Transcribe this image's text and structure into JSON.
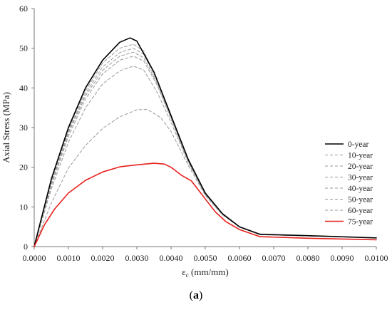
{
  "chart_data": {
    "type": "line",
    "ylabel": "Axial Stress (MPa)",
    "xlabel_main": "ε",
    "xlabel_sub": "c",
    "xlabel_unit": " (mm/mm)",
    "xlim": [
      0,
      0.01
    ],
    "ylim": [
      0,
      60
    ],
    "x_ticks": [
      "0.0000",
      "0.0010",
      "0.0020",
      "0.0030",
      "0.0040",
      "0.0050",
      "0.0060",
      "0.0070",
      "0.0080",
      "0.0090",
      "0.0100"
    ],
    "y_ticks": [
      "0",
      "10",
      "20",
      "30",
      "40",
      "50",
      "60"
    ],
    "grid": false,
    "legend_position": "right",
    "series": [
      {
        "name": "0-year",
        "color": "#000000",
        "dash": "solid",
        "points": [
          [
            0,
            0
          ],
          [
            0.0005,
            17
          ],
          [
            0.001,
            30
          ],
          [
            0.0015,
            40
          ],
          [
            0.002,
            47
          ],
          [
            0.0025,
            51.5
          ],
          [
            0.0028,
            52.6
          ],
          [
            0.003,
            51.8
          ],
          [
            0.0035,
            44
          ],
          [
            0.004,
            33
          ],
          [
            0.0045,
            22
          ],
          [
            0.005,
            13.5
          ],
          [
            0.0055,
            8.3
          ],
          [
            0.006,
            5.0
          ],
          [
            0.0066,
            3.1
          ],
          [
            0.008,
            2.75
          ],
          [
            0.01,
            2.2
          ]
        ]
      },
      {
        "name": "10-year",
        "color": "#9a9a9a",
        "dash": "dashed",
        "points": [
          [
            0,
            0
          ],
          [
            0.0005,
            16.5
          ],
          [
            0.001,
            29.5
          ],
          [
            0.0015,
            39.3
          ],
          [
            0.002,
            46.3
          ],
          [
            0.0025,
            50
          ],
          [
            0.0029,
            51
          ],
          [
            0.0032,
            49.3
          ],
          [
            0.0036,
            42
          ],
          [
            0.004,
            33
          ],
          [
            0.0045,
            22
          ],
          [
            0.005,
            13.5
          ],
          [
            0.0055,
            8.3
          ],
          [
            0.006,
            5.0
          ],
          [
            0.0066,
            3.0
          ],
          [
            0.008,
            2.7
          ],
          [
            0.01,
            2.2
          ]
        ]
      },
      {
        "name": "20-year",
        "color": "#9a9a9a",
        "dash": "dashed",
        "points": [
          [
            0,
            0
          ],
          [
            0.0005,
            16.2
          ],
          [
            0.001,
            29
          ],
          [
            0.0015,
            38.6
          ],
          [
            0.002,
            45.3
          ],
          [
            0.0025,
            48.9
          ],
          [
            0.0029,
            50
          ],
          [
            0.0032,
            48.5
          ],
          [
            0.0036,
            41.5
          ],
          [
            0.004,
            32.8
          ],
          [
            0.0045,
            21.8
          ],
          [
            0.005,
            13.4
          ],
          [
            0.0055,
            8.2
          ],
          [
            0.006,
            5.0
          ],
          [
            0.0066,
            3.0
          ],
          [
            0.008,
            2.7
          ],
          [
            0.01,
            2.2
          ]
        ]
      },
      {
        "name": "30-year",
        "color": "#9a9a9a",
        "dash": "dashed",
        "points": [
          [
            0,
            0
          ],
          [
            0.0005,
            15.8
          ],
          [
            0.001,
            28.5
          ],
          [
            0.0015,
            38
          ],
          [
            0.002,
            44.4
          ],
          [
            0.0025,
            48
          ],
          [
            0.0029,
            49
          ],
          [
            0.0032,
            47.6
          ],
          [
            0.0036,
            41
          ],
          [
            0.004,
            32.5
          ],
          [
            0.0045,
            21.6
          ],
          [
            0.005,
            13.3
          ],
          [
            0.0055,
            8.2
          ],
          [
            0.006,
            5.0
          ],
          [
            0.0066,
            3.0
          ],
          [
            0.008,
            2.7
          ],
          [
            0.01,
            2.2
          ]
        ]
      },
      {
        "name": "40-year",
        "color": "#9a9a9a",
        "dash": "dashed",
        "points": [
          [
            0,
            0
          ],
          [
            0.0005,
            15.3
          ],
          [
            0.001,
            27.8
          ],
          [
            0.0015,
            37.2
          ],
          [
            0.002,
            43.5
          ],
          [
            0.0025,
            47
          ],
          [
            0.0029,
            48
          ],
          [
            0.0032,
            46.8
          ],
          [
            0.0036,
            40.6
          ],
          [
            0.004,
            32.2
          ],
          [
            0.0045,
            21.5
          ],
          [
            0.005,
            13.2
          ],
          [
            0.0055,
            8.1
          ],
          [
            0.006,
            4.9
          ],
          [
            0.0066,
            3.0
          ],
          [
            0.008,
            2.7
          ],
          [
            0.01,
            2.2
          ]
        ]
      },
      {
        "name": "50-year",
        "color": "#9a9a9a",
        "dash": "dashed",
        "points": [
          [
            0,
            0
          ],
          [
            0.0005,
            14.5
          ],
          [
            0.001,
            26.3
          ],
          [
            0.0015,
            35
          ],
          [
            0.002,
            41
          ],
          [
            0.0025,
            44.3
          ],
          [
            0.0029,
            45.5
          ],
          [
            0.0032,
            44.5
          ],
          [
            0.0036,
            38.8
          ],
          [
            0.004,
            31.3
          ],
          [
            0.0045,
            21.2
          ],
          [
            0.005,
            13.1
          ],
          [
            0.0055,
            8.1
          ],
          [
            0.006,
            4.9
          ],
          [
            0.0066,
            3.0
          ],
          [
            0.008,
            2.7
          ],
          [
            0.01,
            2.2
          ]
        ]
      },
      {
        "name": "60-year",
        "color": "#9a9a9a",
        "dash": "dashed",
        "points": [
          [
            0,
            0
          ],
          [
            0.0005,
            11
          ],
          [
            0.001,
            19.8
          ],
          [
            0.0015,
            25.5
          ],
          [
            0.002,
            29.8
          ],
          [
            0.0025,
            32.7
          ],
          [
            0.003,
            34.5
          ],
          [
            0.0033,
            34.6
          ],
          [
            0.0037,
            32.5
          ],
          [
            0.004,
            29
          ],
          [
            0.0045,
            20.5
          ],
          [
            0.005,
            12.9
          ],
          [
            0.0055,
            8.0
          ],
          [
            0.006,
            4.9
          ],
          [
            0.0066,
            3.0
          ],
          [
            0.008,
            2.7
          ],
          [
            0.01,
            2.2
          ]
        ]
      },
      {
        "name": "75-year",
        "color": "#e8201d",
        "dash": "solid",
        "points": [
          [
            0,
            0
          ],
          [
            0.0003,
            5.5
          ],
          [
            0.0006,
            9.5
          ],
          [
            0.001,
            13.5
          ],
          [
            0.0015,
            16.7
          ],
          [
            0.002,
            18.8
          ],
          [
            0.0025,
            20.1
          ],
          [
            0.003,
            20.6
          ],
          [
            0.0035,
            21
          ],
          [
            0.0038,
            20.8
          ],
          [
            0.004,
            20
          ],
          [
            0.0043,
            18
          ],
          [
            0.0046,
            16.5
          ],
          [
            0.005,
            12
          ],
          [
            0.0053,
            8.7
          ],
          [
            0.0056,
            6.3
          ],
          [
            0.006,
            4.3
          ],
          [
            0.0066,
            2.5
          ],
          [
            0.008,
            2.1
          ],
          [
            0.01,
            1.7
          ]
        ]
      }
    ]
  },
  "caption": {
    "open": "(",
    "label": "a",
    "close": ")"
  }
}
